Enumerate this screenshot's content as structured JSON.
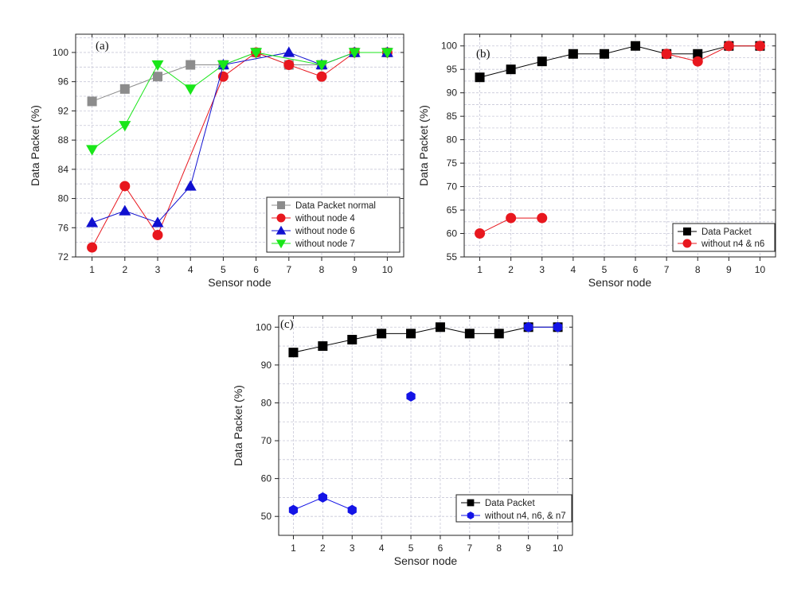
{
  "chart_data": [
    {
      "type": "line",
      "panel_label": "(a)",
      "xlabel": "Sensor node",
      "ylabel": "Data Packet (%)",
      "xlim": [
        0.5,
        10.5
      ],
      "ylim": [
        72,
        102.5
      ],
      "x_ticks": [
        "1",
        "2",
        "3",
        "4",
        "5",
        "6",
        "7",
        "8",
        "9",
        "10"
      ],
      "y_ticks": [
        "72",
        "76",
        "80",
        "84",
        "88",
        "92",
        "96",
        "100"
      ],
      "grid": true,
      "legend_position": "bottom-right",
      "series": [
        {
          "name": "Data Packet normal",
          "color": "#8c8c8c",
          "marker": "square",
          "x": [
            1,
            2,
            3,
            4,
            5,
            6,
            7,
            8,
            9,
            10
          ],
          "values": [
            93.3,
            95,
            96.7,
            98.3,
            98.3,
            100,
            98.3,
            98.3,
            100,
            100
          ]
        },
        {
          "name": "without node 4",
          "color": "#e8171e",
          "marker": "circle",
          "x": [
            1,
            2,
            3,
            5,
            6,
            7,
            8,
            9,
            10
          ],
          "values": [
            73.3,
            81.7,
            75,
            96.7,
            100,
            98.3,
            96.7,
            100,
            100
          ]
        },
        {
          "name": "without node 6",
          "color": "#1010d0",
          "marker": "triangle-up",
          "x": [
            1,
            2,
            3,
            4,
            5,
            7,
            8,
            9,
            10
          ],
          "values": [
            76.7,
            78.3,
            76.7,
            81.7,
            98.3,
            100,
            98.3,
            100,
            100
          ]
        },
        {
          "name": "without node 7",
          "color": "#19e619",
          "marker": "triangle-down",
          "x": [
            1,
            2,
            3,
            4,
            5,
            6,
            8,
            9,
            10
          ],
          "values": [
            86.7,
            90,
            98.3,
            95,
            98.3,
            100,
            98.3,
            100,
            100
          ]
        }
      ]
    },
    {
      "type": "line",
      "panel_label": "(b)",
      "xlabel": "Sensor node",
      "ylabel": "Data Packet (%)",
      "xlim": [
        0.5,
        10.5
      ],
      "ylim": [
        55,
        102.5
      ],
      "x_ticks": [
        "1",
        "2",
        "3",
        "4",
        "5",
        "6",
        "7",
        "8",
        "9",
        "10"
      ],
      "y_ticks": [
        "55",
        "60",
        "65",
        "70",
        "75",
        "80",
        "85",
        "90",
        "95",
        "100"
      ],
      "grid": true,
      "legend_position": "bottom-right",
      "series": [
        {
          "name": "Data Packet",
          "color": "#000000",
          "marker": "square",
          "segments": [
            [
              1,
              2,
              3,
              4,
              5,
              6,
              7,
              8,
              9,
              10
            ]
          ],
          "x": [
            1,
            2,
            3,
            4,
            5,
            6,
            7,
            8,
            9,
            10
          ],
          "values": [
            93.3,
            95,
            96.7,
            98.3,
            98.3,
            100,
            98.3,
            98.3,
            100,
            100
          ]
        },
        {
          "name": "without n4 & n6",
          "color": "#e8171e",
          "marker": "circle",
          "segments": [
            [
              1,
              2,
              3
            ],
            [
              7,
              8,
              9,
              10
            ]
          ],
          "x": [
            1,
            2,
            3,
            7,
            8,
            9,
            10
          ],
          "values": [
            60,
            63.3,
            63.3,
            98.3,
            96.7,
            100,
            100
          ]
        }
      ]
    },
    {
      "type": "line",
      "panel_label": "(c)",
      "xlabel": "Sensor node",
      "ylabel": "Data Packet (%)",
      "xlim": [
        0.5,
        10.5
      ],
      "ylim": [
        45,
        103
      ],
      "x_ticks": [
        "1",
        "2",
        "3",
        "4",
        "5",
        "6",
        "7",
        "8",
        "9",
        "10"
      ],
      "y_ticks": [
        "50",
        "60",
        "70",
        "80",
        "90",
        "100"
      ],
      "grid": true,
      "legend_position": "bottom-right",
      "series": [
        {
          "name": "Data Packet",
          "color": "#000000",
          "marker": "square",
          "segments": [
            [
              1,
              2,
              3,
              4,
              5,
              6,
              7,
              8,
              9,
              10
            ]
          ],
          "x": [
            1,
            2,
            3,
            4,
            5,
            6,
            7,
            8,
            9,
            10
          ],
          "values": [
            93.3,
            95,
            96.7,
            98.3,
            98.3,
            100,
            98.3,
            98.3,
            100,
            100
          ]
        },
        {
          "name": "without n4, n6, & n7",
          "color": "#1414e6",
          "marker": "hexagon",
          "segments": [
            [
              1,
              2,
              3
            ],
            [
              5
            ],
            [
              9,
              10
            ]
          ],
          "x": [
            1,
            2,
            3,
            5,
            9,
            10
          ],
          "values": [
            51.7,
            55,
            51.7,
            81.7,
            100,
            100
          ]
        }
      ]
    }
  ]
}
